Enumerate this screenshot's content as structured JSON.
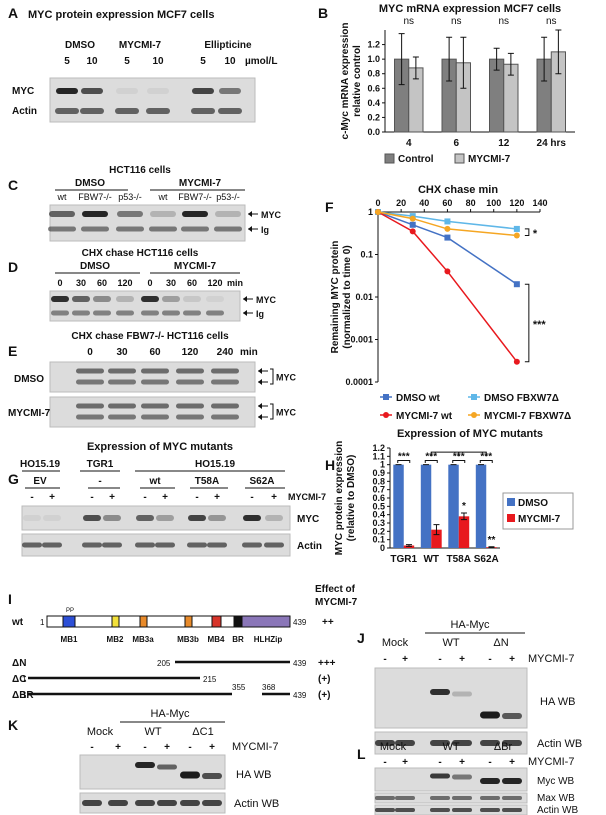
{
  "panels": {
    "A": {
      "label": "A",
      "title": "MYC protein expression MCF7 cells",
      "groups": [
        "DMSO",
        "MYCMI-7",
        "Ellipticine"
      ],
      "doses": [
        "5",
        "10",
        "5",
        "10",
        "5",
        "10"
      ],
      "unit": "µmol/L",
      "rows": [
        "MYC",
        "Actin"
      ]
    },
    "B": {
      "label": "B"
    },
    "C": {
      "label": "C",
      "title": "HCT116 cells",
      "groups": [
        "DMSO",
        "MYCMI-7"
      ],
      "lanes": [
        "wt",
        "FBW7-/-",
        "p53-/-",
        "wt",
        "FBW7-/-",
        "p53-/-"
      ],
      "bands": [
        "MYC",
        "Ig"
      ]
    },
    "D": {
      "label": "D",
      "title": "CHX chase HCT116 cells",
      "groups": [
        "DMSO",
        "MYCMI-7"
      ],
      "times": [
        "0",
        "30",
        "60",
        "120",
        "0",
        "30",
        "60",
        "120"
      ],
      "unit": "min",
      "bands": [
        "MYC",
        "Ig"
      ]
    },
    "E": {
      "label": "E",
      "title": "CHX chase FBW7-/- HCT116 cells",
      "times": [
        "0",
        "30",
        "60",
        "120",
        "240"
      ],
      "unit": "min",
      "rows": [
        "DMSO",
        "MYCMI-7"
      ],
      "bands": [
        "MYC",
        "MYC"
      ]
    },
    "F": {
      "label": "F"
    },
    "G": {
      "label": "G",
      "title": "Expression of MYC mutants",
      "cell_lines": [
        "HO15.19",
        "TGR1",
        "HO15.19"
      ],
      "constructs": [
        "EV",
        "-",
        "wt",
        "T58A",
        "S62A"
      ],
      "treatment": "MYCMI-7",
      "signs": [
        "-",
        "+",
        "-",
        "+",
        "-",
        "+",
        "-",
        "+",
        "-",
        "+"
      ],
      "rows": [
        "MYC",
        "Actin"
      ]
    },
    "H": {
      "label": "H"
    },
    "I": {
      "label": "I",
      "header": [
        "Effect of",
        "MYCMI-7"
      ],
      "site": "PP",
      "domains": [
        "MB1",
        "MB2",
        "MB3a",
        "MB3b",
        "MB4",
        "BR",
        "HLHZip"
      ],
      "constructs": [
        {
          "name": "wt",
          "start": "1",
          "end": "439",
          "effect": "++"
        },
        {
          "name": "ΔN",
          "start": "205",
          "end": "439",
          "effect": "+++"
        },
        {
          "name": "ΔC",
          "start": "1",
          "end": "215",
          "effect": "(+)"
        },
        {
          "name": "ΔBR",
          "start": "1",
          "gap": [
            "355",
            "368"
          ],
          "end": "439",
          "effect": "(+)"
        }
      ]
    },
    "J": {
      "label": "J",
      "title": "HA-Myc",
      "lanes": [
        "Mock",
        "WT",
        "ΔN"
      ],
      "signs": [
        "-",
        "+",
        "-",
        "+",
        "-",
        "+"
      ],
      "treatment": "MYCMI-7",
      "rows": [
        "HA WB",
        "Actin WB"
      ]
    },
    "K": {
      "label": "K",
      "title": "HA-Myc",
      "lanes": [
        "Mock",
        "WT",
        "ΔC1"
      ],
      "signs": [
        "-",
        "+",
        "-",
        "+",
        "-",
        "+"
      ],
      "treatment": "MYCMI-7",
      "rows": [
        "HA WB",
        "Actin WB"
      ]
    },
    "L": {
      "label": "L",
      "lanes": [
        "Mock",
        "WT",
        "ΔBr"
      ],
      "signs": [
        "-",
        "+",
        "-",
        "+",
        "-",
        "+"
      ],
      "treatment": "MYCMI-7",
      "rows": [
        "Myc WB",
        "Max WB",
        "Actin WB"
      ]
    }
  },
  "chart_data": [
    {
      "type": "bar",
      "title": "MYC mRNA expression MCF7 cells",
      "ylabel": [
        "c-Myc mRNA expression",
        "relative control"
      ],
      "categories": [
        "4",
        "6",
        "12",
        "24 hrs"
      ],
      "series": [
        {
          "name": "Control",
          "color": "#7f7f7f",
          "values": [
            1,
            1,
            1,
            1
          ],
          "errors": [
            0.35,
            0.3,
            0.15,
            0.3
          ]
        },
        {
          "name": "MYCMI-7",
          "color": "#c4c4c4",
          "values": [
            0.88,
            0.95,
            0.93,
            1.1
          ],
          "errors": [
            0.15,
            0.35,
            0.15,
            0.3
          ]
        }
      ],
      "ylim": [
        0,
        1.4
      ],
      "yticks": [
        {
          "value": 0,
          "label": "0.0"
        },
        0.2,
        0.4,
        0.6,
        0.8,
        {
          "value": 1,
          "label": "1.0"
        },
        1.2
      ],
      "annotations": [
        "ns",
        "ns",
        "ns",
        "ns"
      ],
      "grid": false
    },
    {
      "type": "line",
      "title": "CHX chase min",
      "ylabel": [
        "Remaining MYC protein",
        "(normalized to time 0)"
      ],
      "x": [
        0,
        30,
        60,
        120
      ],
      "xlim": [
        0,
        140
      ],
      "xticks": [
        0,
        20,
        40,
        60,
        80,
        100,
        120,
        140
      ],
      "yscale": "log",
      "ylim": [
        0.0001,
        1
      ],
      "yticks": [
        1,
        0.1,
        0.01,
        0.001,
        0.0001
      ],
      "series": [
        {
          "name": "DMSO wt",
          "color": "#4472c4",
          "marker": "square",
          "values": [
            1,
            0.5,
            0.25,
            0.02
          ]
        },
        {
          "name": "DMSO FBXW7Δ",
          "color": "#5fb7e8",
          "marker": "square",
          "values": [
            1,
            0.8,
            0.6,
            0.4
          ]
        },
        {
          "name": "MYCMI-7 wt",
          "color": "#e8191e",
          "marker": "circle",
          "values": [
            1,
            0.35,
            0.04,
            0.0003
          ]
        },
        {
          "name": "MYCMI-7 FBXW7Δ",
          "color": "#f5a623",
          "marker": "circle",
          "values": [
            1,
            0.7,
            0.4,
            0.28
          ]
        }
      ],
      "annotations": [
        "*",
        "***"
      ],
      "grid": false
    },
    {
      "type": "bar",
      "title": "Expression of MYC mutants",
      "ylabel": [
        "MYC protein expression",
        "(relative to DMSO)"
      ],
      "categories": [
        "TGR1",
        "WT",
        "T58A",
        "S62A"
      ],
      "series": [
        {
          "name": "DMSO",
          "color": "#4472c4",
          "values": [
            1,
            1,
            1,
            1
          ],
          "errors": [
            0,
            0,
            0,
            0
          ]
        },
        {
          "name": "MYCMI-7",
          "color": "#e8191e",
          "values": [
            0.03,
            0.22,
            0.38,
            0.01
          ],
          "errors": [
            0.01,
            0.06,
            0.04,
            0.005
          ]
        }
      ],
      "ylim": [
        0,
        1.2
      ],
      "yticks": [
        0,
        0.1,
        0.2,
        0.3,
        0.4,
        0.5,
        0.6,
        0.7,
        0.8,
        0.9,
        1,
        1.1,
        1.2
      ],
      "annotations": [
        "***",
        "***",
        "***",
        "***"
      ],
      "bar_annotations": [
        "*",
        "**"
      ],
      "grid": false
    }
  ]
}
